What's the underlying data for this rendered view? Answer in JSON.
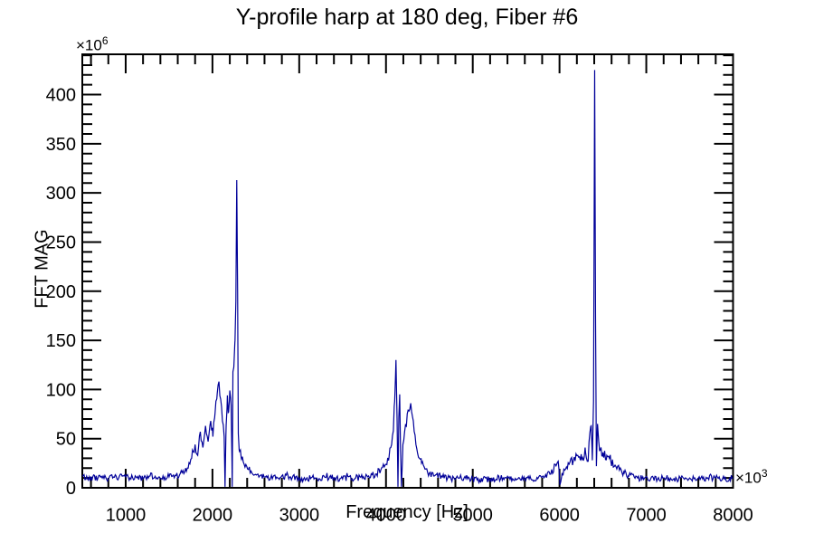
{
  "window": {
    "background": "#ffffff"
  },
  "chart_data": {
    "type": "line",
    "title": "Y-profile harp at 180 deg, Fiber #6",
    "xlabel": "Frequency [Hz]",
    "ylabel": "FFT MAG",
    "x_exponent": {
      "base": "×10",
      "sup": "3"
    },
    "y_exponent": {
      "base": "×10",
      "sup": "6"
    },
    "xlim": [
      500,
      8000
    ],
    "ylim": [
      0,
      441
    ],
    "x_major_ticks": [
      1000,
      2000,
      3000,
      4000,
      5000,
      6000,
      7000,
      8000
    ],
    "x_minor_step": 200,
    "y_major_ticks": [
      0,
      50,
      100,
      150,
      200,
      250,
      300,
      350,
      400
    ],
    "y_minor_step": 10,
    "grid": false,
    "legend": null,
    "line_color": "#000099",
    "axis_color": "#000000",
    "baseline_level": 10,
    "noise_amplitude": 5,
    "peaks": [
      {
        "x": 2280,
        "y": 313
      },
      {
        "x": 4115,
        "y": 130
      },
      {
        "x": 6405,
        "y": 425
      }
    ],
    "points": [
      [
        500,
        12
      ],
      [
        560,
        9
      ],
      [
        620,
        11
      ],
      [
        680,
        10
      ],
      [
        740,
        12
      ],
      [
        800,
        9
      ],
      [
        860,
        11
      ],
      [
        920,
        10
      ],
      [
        980,
        12
      ],
      [
        1050,
        10
      ],
      [
        1120,
        11
      ],
      [
        1200,
        9
      ],
      [
        1280,
        12
      ],
      [
        1360,
        10
      ],
      [
        1450,
        11
      ],
      [
        1540,
        12
      ],
      [
        1620,
        13
      ],
      [
        1680,
        16
      ],
      [
        1720,
        20
      ],
      [
        1760,
        30
      ],
      [
        1800,
        44
      ],
      [
        1830,
        33
      ],
      [
        1860,
        57
      ],
      [
        1890,
        41
      ],
      [
        1920,
        63
      ],
      [
        1950,
        47
      ],
      [
        1980,
        68
      ],
      [
        2005,
        52
      ],
      [
        2030,
        76
      ],
      [
        2055,
        96
      ],
      [
        2075,
        108
      ],
      [
        2095,
        90
      ],
      [
        2115,
        68
      ],
      [
        2135,
        52
      ],
      [
        2145,
        1
      ],
      [
        2158,
        64
      ],
      [
        2172,
        94
      ],
      [
        2186,
        77
      ],
      [
        2200,
        99
      ],
      [
        2215,
        84
      ],
      [
        2228,
        1
      ],
      [
        2236,
        118
      ],
      [
        2248,
        126
      ],
      [
        2260,
        150
      ],
      [
        2270,
        190
      ],
      [
        2280,
        313
      ],
      [
        2290,
        200
      ],
      [
        2298,
        55
      ],
      [
        2312,
        37
      ],
      [
        2335,
        29
      ],
      [
        2365,
        24
      ],
      [
        2405,
        19
      ],
      [
        2455,
        15
      ],
      [
        2505,
        13
      ],
      [
        2600,
        11
      ],
      [
        2750,
        10
      ],
      [
        2900,
        11
      ],
      [
        3050,
        9
      ],
      [
        3200,
        10
      ],
      [
        3350,
        11
      ],
      [
        3500,
        9
      ],
      [
        3650,
        10
      ],
      [
        3800,
        12
      ],
      [
        3880,
        14
      ],
      [
        3940,
        18
      ],
      [
        3990,
        23
      ],
      [
        4035,
        31
      ],
      [
        4065,
        44
      ],
      [
        4085,
        58
      ],
      [
        4100,
        88
      ],
      [
        4115,
        130
      ],
      [
        4128,
        68
      ],
      [
        4138,
        1
      ],
      [
        4148,
        72
      ],
      [
        4158,
        95
      ],
      [
        4168,
        38
      ],
      [
        4178,
        1
      ],
      [
        4195,
        44
      ],
      [
        4225,
        64
      ],
      [
        4255,
        79
      ],
      [
        4285,
        86
      ],
      [
        4315,
        68
      ],
      [
        4345,
        44
      ],
      [
        4375,
        31
      ],
      [
        4410,
        25
      ],
      [
        4450,
        19
      ],
      [
        4500,
        15
      ],
      [
        4570,
        13
      ],
      [
        4650,
        11
      ],
      [
        4750,
        9
      ],
      [
        4900,
        10
      ],
      [
        5050,
        8
      ],
      [
        5200,
        9
      ],
      [
        5350,
        10
      ],
      [
        5500,
        8
      ],
      [
        5650,
        9
      ],
      [
        5800,
        11
      ],
      [
        5900,
        14
      ],
      [
        5950,
        24
      ],
      [
        5985,
        27
      ],
      [
        6005,
        3
      ],
      [
        6030,
        15
      ],
      [
        6070,
        19
      ],
      [
        6110,
        24
      ],
      [
        6160,
        28
      ],
      [
        6210,
        33
      ],
      [
        6255,
        29
      ],
      [
        6300,
        36
      ],
      [
        6330,
        27
      ],
      [
        6350,
        56
      ],
      [
        6365,
        63
      ],
      [
        6378,
        28
      ],
      [
        6392,
        88
      ],
      [
        6405,
        425
      ],
      [
        6415,
        175
      ],
      [
        6425,
        22
      ],
      [
        6438,
        65
      ],
      [
        6452,
        47
      ],
      [
        6468,
        38
      ],
      [
        6500,
        36
      ],
      [
        6545,
        33
      ],
      [
        6590,
        28
      ],
      [
        6640,
        23
      ],
      [
        6690,
        18
      ],
      [
        6745,
        15
      ],
      [
        6800,
        12
      ],
      [
        6900,
        10
      ],
      [
        7050,
        9
      ],
      [
        7200,
        10
      ],
      [
        7350,
        9
      ],
      [
        7500,
        10
      ],
      [
        7650,
        9
      ],
      [
        7800,
        10
      ],
      [
        7900,
        9
      ],
      [
        8000,
        10
      ]
    ]
  }
}
